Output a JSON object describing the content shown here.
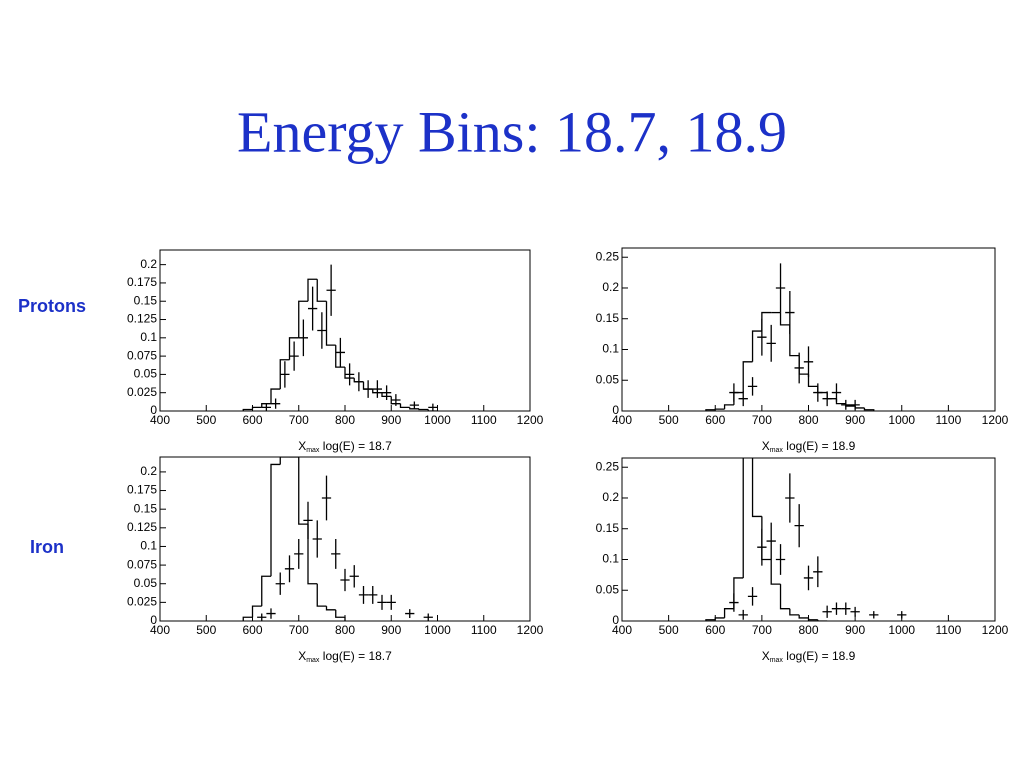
{
  "title": "Energy Bins:  18.7, 18.9",
  "row_labels": [
    "Protons",
    "Iron"
  ],
  "chart_data": [
    {
      "type": "histogram",
      "xlabel_symbol": "X",
      "xlabel_subscript": "max",
      "xlabel": "log(E) = 18.7",
      "bins": [
        580,
        600,
        620,
        640,
        660,
        680,
        700,
        720,
        740,
        760,
        780,
        800,
        820,
        840,
        860,
        880,
        900,
        920,
        940,
        960,
        980,
        1000
      ],
      "counts": [
        0.002,
        0.005,
        0.01,
        0.03,
        0.07,
        0.1,
        0.15,
        0.18,
        0.15,
        0.09,
        0.06,
        0.045,
        0.04,
        0.03,
        0.025,
        0.02,
        0.01,
        0.005,
        0.003,
        0.002,
        0
      ],
      "points": {
        "x": [
          630,
          650,
          670,
          690,
          710,
          730,
          750,
          770,
          790,
          810,
          830,
          850,
          870,
          890,
          910,
          950,
          990
        ],
        "values": [
          0.005,
          0.01,
          0.05,
          0.075,
          0.1,
          0.14,
          0.11,
          0.165,
          0.08,
          0.05,
          0.04,
          0.03,
          0.03,
          0.025,
          0.015,
          0.008,
          0.005
        ],
        "errors": [
          0.005,
          0.007,
          0.018,
          0.02,
          0.025,
          0.03,
          0.025,
          0.035,
          0.02,
          0.015,
          0.013,
          0.012,
          0.012,
          0.01,
          0.008,
          0.005,
          0.005
        ]
      },
      "xlim": [
        400,
        1200
      ],
      "ylim": [
        0,
        0.22
      ],
      "xticks": [
        400,
        500,
        600,
        700,
        800,
        900,
        1000,
        1100,
        1200
      ],
      "yticks": [
        0,
        0.025,
        0.05,
        0.075,
        0.1,
        0.125,
        0.15,
        0.175,
        0.2
      ]
    },
    {
      "type": "histogram",
      "xlabel_symbol": "X",
      "xlabel_subscript": "max",
      "xlabel": "log(E) = 18.9",
      "bins": [
        580,
        600,
        620,
        640,
        660,
        680,
        700,
        720,
        740,
        760,
        780,
        800,
        820,
        840,
        860,
        880,
        900,
        920,
        940
      ],
      "counts": [
        0.002,
        0.003,
        0.01,
        0.03,
        0.08,
        0.13,
        0.16,
        0.16,
        0.14,
        0.09,
        0.06,
        0.04,
        0.03,
        0.02,
        0.012,
        0.008,
        0.005,
        0.002
      ],
      "points": {
        "x": [
          640,
          660,
          680,
          700,
          720,
          740,
          760,
          780,
          800,
          820,
          840,
          860,
          880,
          900
        ],
        "values": [
          0.03,
          0.02,
          0.04,
          0.12,
          0.11,
          0.2,
          0.16,
          0.07,
          0.08,
          0.03,
          0.02,
          0.03,
          0.01,
          0.01
        ],
        "errors": [
          0.015,
          0.012,
          0.015,
          0.03,
          0.03,
          0.04,
          0.035,
          0.025,
          0.025,
          0.015,
          0.012,
          0.015,
          0.008,
          0.008
        ]
      },
      "xlim": [
        400,
        1200
      ],
      "ylim": [
        0,
        0.265
      ],
      "xticks": [
        400,
        500,
        600,
        700,
        800,
        900,
        1000,
        1100,
        1200
      ],
      "yticks": [
        0,
        0.05,
        0.1,
        0.15,
        0.2,
        0.25
      ]
    },
    {
      "type": "histogram",
      "xlabel_symbol": "X",
      "xlabel_subscript": "max",
      "xlabel": "log(E) = 18.7",
      "bins": [
        580,
        600,
        620,
        640,
        660,
        680,
        700,
        720,
        740,
        760,
        780,
        800
      ],
      "counts": [
        0.005,
        0.02,
        0.06,
        0.21,
        0.22,
        0.22,
        0.13,
        0.05,
        0.02,
        0.015,
        0.005
      ],
      "points": {
        "x": [
          620,
          640,
          660,
          680,
          700,
          720,
          740,
          760,
          780,
          800,
          820,
          840,
          860,
          880,
          900,
          940,
          980
        ],
        "values": [
          0.005,
          0.01,
          0.05,
          0.07,
          0.09,
          0.135,
          0.11,
          0.165,
          0.09,
          0.055,
          0.06,
          0.035,
          0.035,
          0.025,
          0.025,
          0.01,
          0.005
        ],
        "errors": [
          0.005,
          0.007,
          0.015,
          0.018,
          0.02,
          0.025,
          0.025,
          0.03,
          0.02,
          0.015,
          0.015,
          0.012,
          0.012,
          0.01,
          0.01,
          0.006,
          0.005
        ]
      },
      "xlim": [
        400,
        1200
      ],
      "ylim": [
        0,
        0.22
      ],
      "xticks": [
        400,
        500,
        600,
        700,
        800,
        900,
        1000,
        1100,
        1200
      ],
      "yticks": [
        0,
        0.025,
        0.05,
        0.075,
        0.1,
        0.125,
        0.15,
        0.175,
        0.2
      ]
    },
    {
      "type": "histogram",
      "xlabel_symbol": "X",
      "xlabel_subscript": "max",
      "xlabel": "log(E) = 18.9",
      "bins": [
        580,
        600,
        620,
        640,
        660,
        680,
        700,
        720,
        740,
        760,
        780,
        800,
        820,
        840
      ],
      "counts": [
        0.002,
        0.005,
        0.02,
        0.07,
        0.27,
        0.17,
        0.1,
        0.06,
        0.02,
        0.01,
        0.005,
        0.002,
        0
      ],
      "points": {
        "x": [
          640,
          660,
          680,
          700,
          720,
          740,
          760,
          780,
          800,
          820,
          840,
          860,
          880,
          900,
          940,
          1000
        ],
        "values": [
          0.03,
          0.01,
          0.04,
          0.12,
          0.13,
          0.1,
          0.2,
          0.155,
          0.07,
          0.08,
          0.015,
          0.02,
          0.02,
          0.015,
          0.01,
          0.01
        ],
        "errors": [
          0.015,
          0.008,
          0.015,
          0.03,
          0.03,
          0.025,
          0.04,
          0.035,
          0.02,
          0.025,
          0.01,
          0.01,
          0.01,
          0.008,
          0.006,
          0.006
        ]
      },
      "xlim": [
        400,
        1200
      ],
      "ylim": [
        0,
        0.265
      ],
      "xticks": [
        400,
        500,
        600,
        700,
        800,
        900,
        1000,
        1100,
        1200
      ],
      "yticks": [
        0,
        0.05,
        0.1,
        0.15,
        0.2,
        0.25
      ]
    }
  ]
}
